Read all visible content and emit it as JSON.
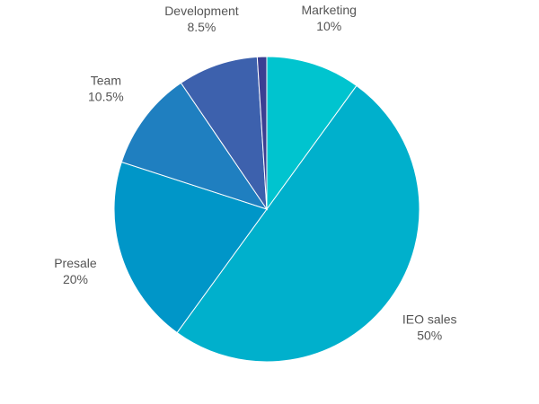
{
  "chart_data": {
    "type": "pie",
    "start_angle_deg": 0,
    "direction": "clockwise",
    "slices": [
      {
        "name": "Marketing",
        "value": 10,
        "display": "10%",
        "color": "#00c4cf"
      },
      {
        "name": "IEO sales",
        "value": 50,
        "display": "50%",
        "color": "#00b0cc"
      },
      {
        "name": "Presale",
        "value": 20,
        "display": "20%",
        "color": "#0096c8"
      },
      {
        "name": "Team",
        "value": 10.5,
        "display": "10.5%",
        "color": "#1f7fc0"
      },
      {
        "name": "Development",
        "value": 8.5,
        "display": "8.5%",
        "color": "#3d61ad"
      },
      {
        "name": "",
        "value": 1,
        "display": "",
        "color": "#3b3f92"
      }
    ]
  }
}
